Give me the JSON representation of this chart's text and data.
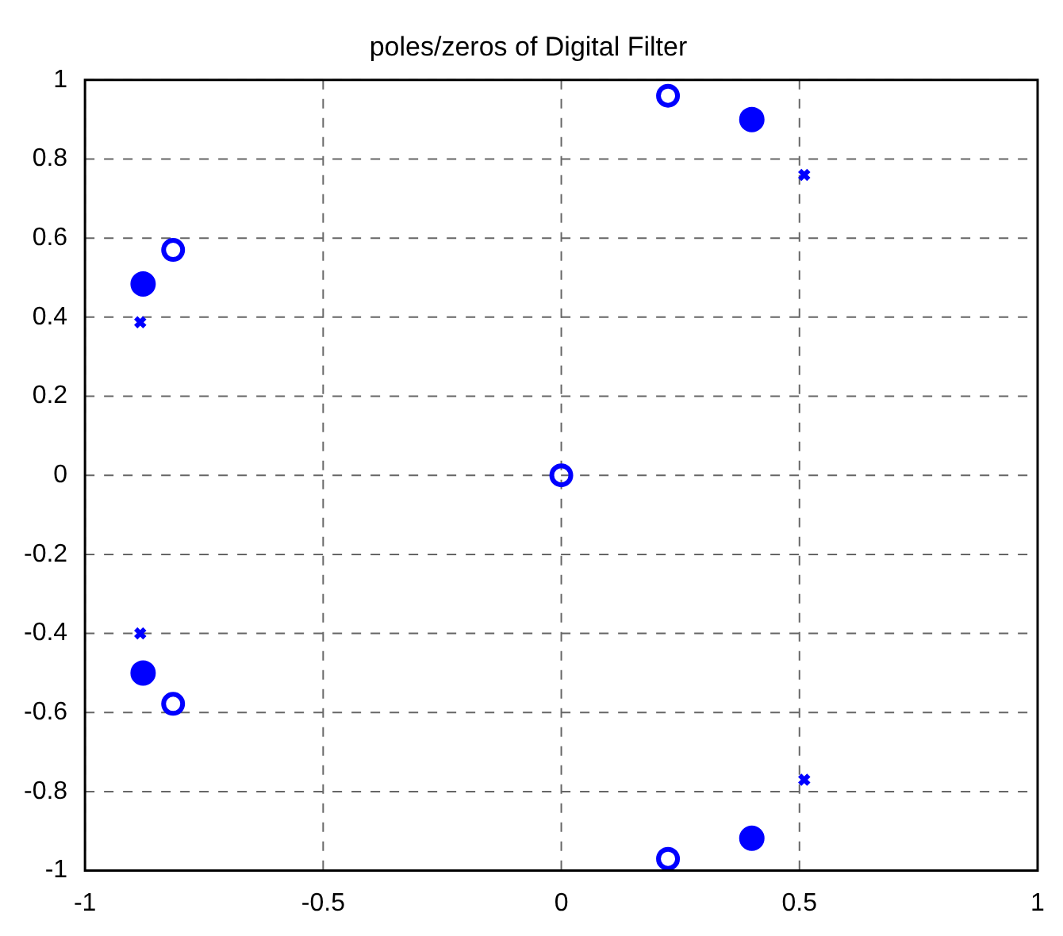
{
  "chart_data": {
    "type": "scatter",
    "title": "poles/zeros of Digital Filter",
    "grid": true,
    "line_style": "dashed",
    "legend": false,
    "xlim": [
      -1,
      1
    ],
    "xticks": [
      -1,
      -0.5,
      0,
      0.5,
      1
    ],
    "ylim": [
      -1,
      1
    ],
    "yticks": [
      -1,
      -0.8,
      -0.6,
      -0.4,
      -0.2,
      0,
      0.2,
      0.4,
      0.6,
      0.8,
      1
    ],
    "series": [
      {
        "color": "#0000ff",
        "marker": "circle",
        "x": [
          0,
          0.224,
          -0.815,
          -0.815,
          0.224
        ],
        "values": [
          0,
          0.96,
          0.57,
          -0.578,
          -0.97
        ]
      },
      {
        "color": "#0000ff",
        "marker": "filled circle",
        "x": [
          -0.878,
          -0.878,
          0.4,
          0.4
        ],
        "values": [
          0.484,
          -0.5,
          0.9,
          -0.918
        ]
      },
      {
        "color": "#0000ff",
        "marker": "cross",
        "x": [
          -0.884,
          -0.884,
          0.51,
          0.51
        ],
        "values": [
          0.387,
          -0.4,
          0.76,
          -0.77
        ]
      }
    ]
  }
}
